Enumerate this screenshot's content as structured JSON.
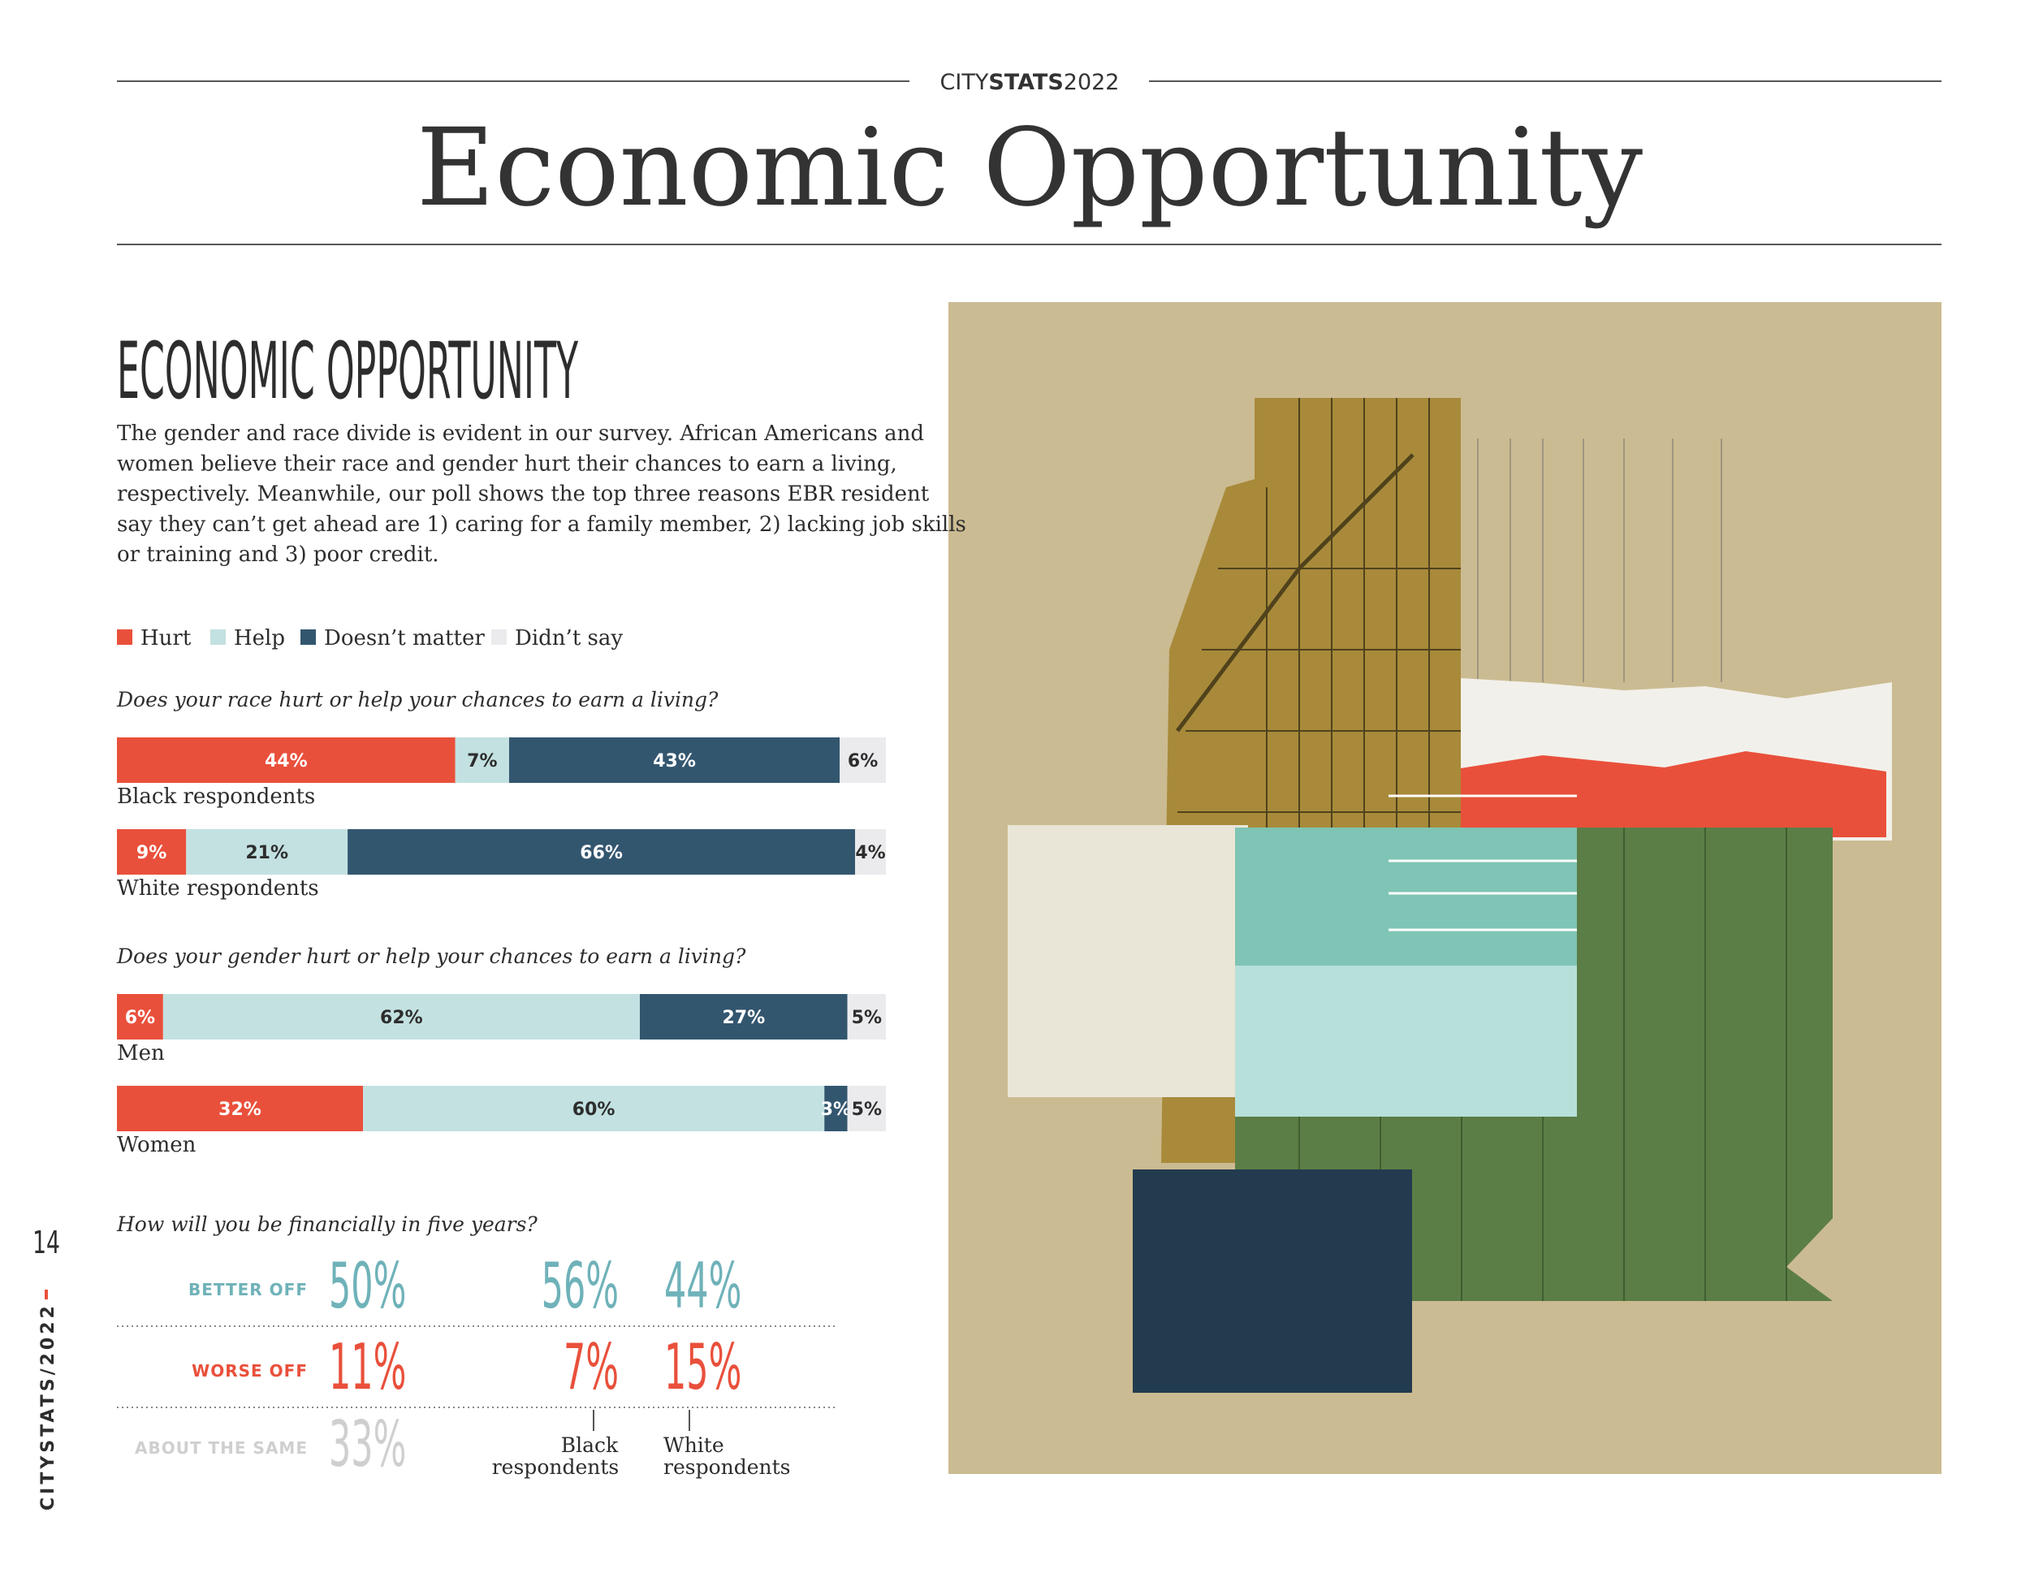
{
  "header": {
    "brand_prefix": "CITY",
    "brand_bold": "STATS",
    "brand_suffix": "2022",
    "title": "Economic Opportunity"
  },
  "section": {
    "heading": "ECONOMIC OPPORTUNITY",
    "body_lines": [
      "The gender and race divide is evident in our survey. African Americans and",
      "women believe their race and gender hurt their chances to earn a living,",
      "respectively. Meanwhile, our poll shows the top three reasons EBR resident",
      "say they can’t get ahead are 1) caring for a family member, 2) lacking job skills",
      "or training and 3) poor credit."
    ]
  },
  "chart_data": {
    "type": "stacked-bar",
    "orientation": "horizontal",
    "xlim": [
      0,
      100
    ],
    "groups": [
      {
        "title": "Does your race hurt or help your chances to earn a living?",
        "categories": [
          "Black respondents",
          "White respondents"
        ]
      },
      {
        "title": "Does your gender hurt or help your chances to earn a living?",
        "categories": [
          "Men",
          "Women"
        ]
      }
    ],
    "series": [
      {
        "name": "Hurt",
        "color": "#e9503b",
        "label_color": "#ffffff",
        "values": [
          44,
          9,
          6,
          32
        ],
        "value_labels": [
          "44%",
          "9%",
          "6%",
          "32%"
        ]
      },
      {
        "name": "Help",
        "color": "#c3e1e1",
        "label_color": "#2d2d2d",
        "values": [
          7,
          21,
          62,
          60
        ],
        "value_labels": [
          "7%",
          "21%",
          "62%",
          "60%"
        ]
      },
      {
        "name": "Doesn’t matter",
        "color": "#33566f",
        "label_color": "#ffffff",
        "values": [
          43,
          66,
          27,
          3
        ],
        "value_labels": [
          "43%",
          "66%",
          "27%",
          "3%"
        ]
      },
      {
        "name": "Didn’t say",
        "color": "#ebebee",
        "label_color": "#2d2d2d",
        "values": [
          6,
          4,
          5,
          5
        ],
        "value_labels": [
          "6%",
          "4%",
          "5%",
          "5%"
        ]
      }
    ]
  },
  "financial": {
    "title": "How will you be financially in five years?",
    "columns": [
      "Black respondents",
      "White respondents"
    ],
    "rows": [
      {
        "label": "BETTER OFF",
        "color": "#6fb2b9",
        "overall": "50%",
        "black": "56%",
        "white": "44%"
      },
      {
        "label": "WORSE OFF",
        "color": "#e9503b",
        "overall": "11%",
        "black": "7%",
        "white": "15%"
      },
      {
        "label": "ABOUT THE SAME",
        "color": "#cfcfcf",
        "overall": "33%"
      }
    ]
  },
  "sidebar": {
    "page_number": "14",
    "brand": "CITYSTATS/2022"
  }
}
